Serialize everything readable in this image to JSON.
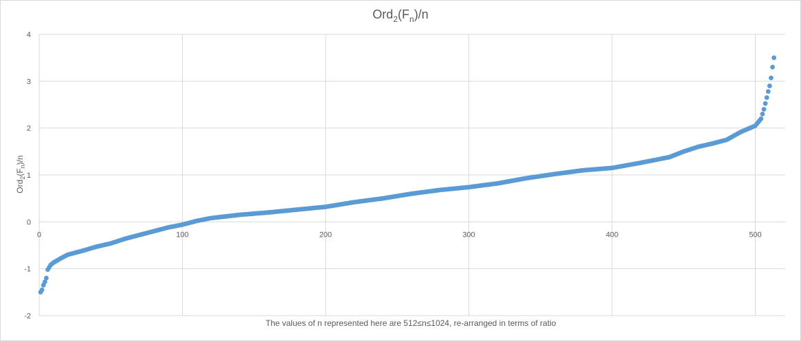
{
  "chart_data": {
    "type": "scatter",
    "title_main": "Ord",
    "title_sub": "2",
    "title_paren_open": "(F",
    "title_sub2": "n",
    "title_rest": ")/n",
    "xlabel": "The values of n represented here are 512≤n≤1024, re-arranged in terms of ratio",
    "ylabel_main": "Ord",
    "ylabel_sub": "2",
    "ylabel_paren_open": "(F",
    "ylabel_sub2": "n",
    "ylabel_rest": ")/n",
    "xlim": [
      0,
      512
    ],
    "ylim": [
      -2,
      4
    ],
    "x_ticks": [
      "0",
      "100",
      "200",
      "300",
      "400",
      "500"
    ],
    "y_ticks": [
      "-2",
      "-1",
      "0",
      "1",
      "2",
      "3",
      "4"
    ],
    "grid": true,
    "legend": "none",
    "marker_color": "#5b9bd5",
    "series_x_range": [
      1,
      513
    ],
    "series_curve_x": [
      1,
      2,
      3,
      4,
      5,
      6,
      8,
      10,
      15,
      20,
      25,
      30,
      40,
      50,
      60,
      70,
      80,
      90,
      100,
      110,
      120,
      140,
      160,
      180,
      200,
      220,
      240,
      260,
      280,
      300,
      320,
      340,
      360,
      380,
      400,
      420,
      440,
      450,
      460,
      470,
      480,
      490,
      500,
      504,
      506,
      508,
      509,
      510,
      511,
      512,
      513
    ],
    "series_curve_y": [
      -1.5,
      -1.45,
      -1.35,
      -1.28,
      -1.2,
      -1.02,
      -0.92,
      -0.87,
      -0.78,
      -0.7,
      -0.66,
      -0.62,
      -0.53,
      -0.46,
      -0.36,
      -0.28,
      -0.2,
      -0.12,
      -0.06,
      0.02,
      0.08,
      0.15,
      0.2,
      0.26,
      0.32,
      0.42,
      0.5,
      0.6,
      0.68,
      0.74,
      0.82,
      0.93,
      1.02,
      1.1,
      1.15,
      1.26,
      1.38,
      1.5,
      1.6,
      1.67,
      1.75,
      1.92,
      2.05,
      2.2,
      2.4,
      2.65,
      2.78,
      2.9,
      3.07,
      3.3,
      3.5
    ]
  }
}
